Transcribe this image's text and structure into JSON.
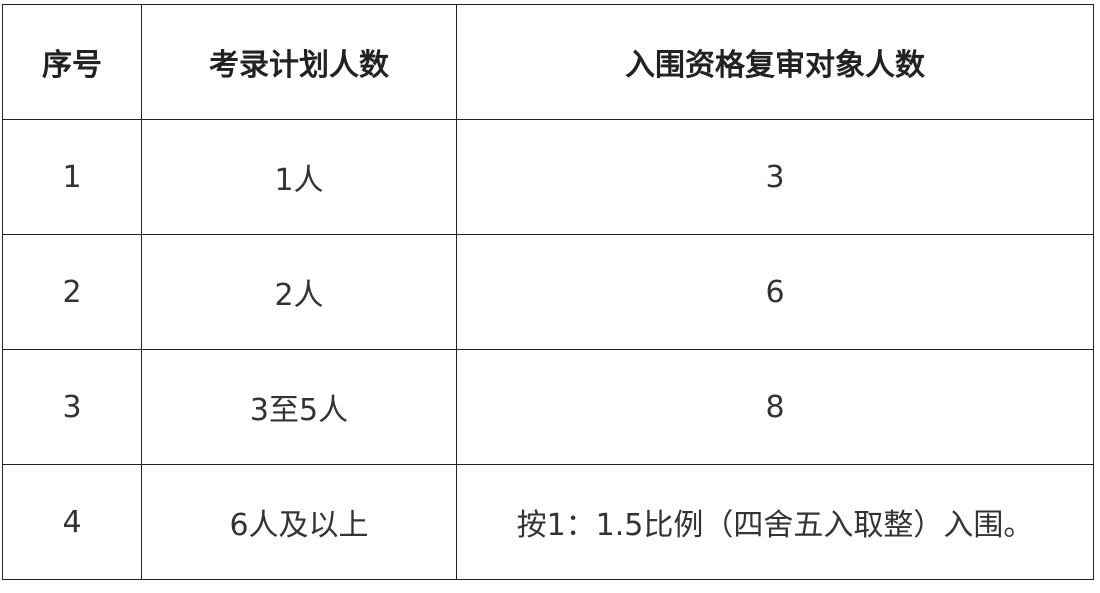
{
  "table": {
    "headers": [
      "序号",
      "考录计划人数",
      "入围资格复审对象人数"
    ],
    "rows": [
      [
        "1",
        "1人",
        "3"
      ],
      [
        "2",
        "2人",
        "6"
      ],
      [
        "3",
        "3至5人",
        "8"
      ],
      [
        "4",
        "6人及以上",
        "按1：1.5比例（四舍五入取整）入围。"
      ]
    ]
  }
}
